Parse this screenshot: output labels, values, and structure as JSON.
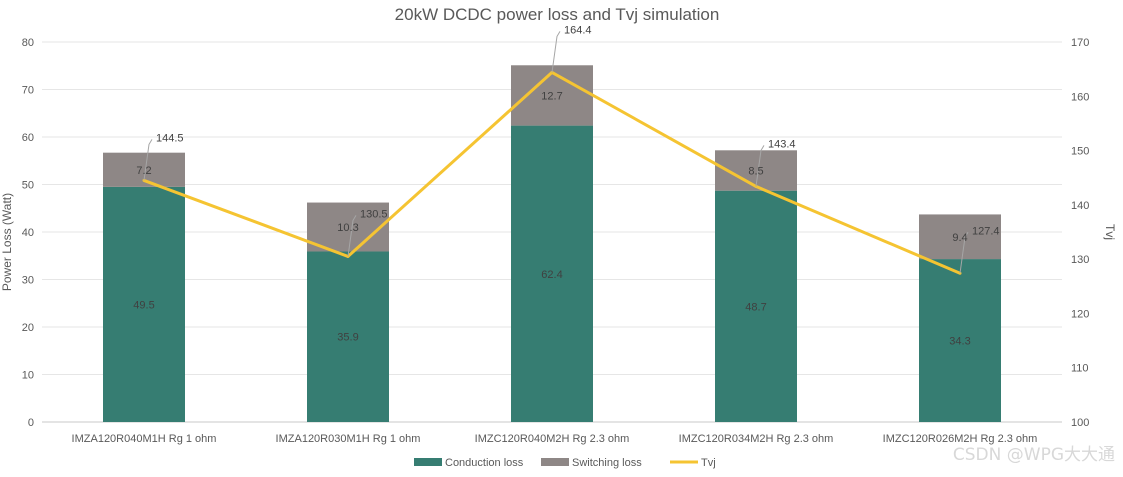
{
  "chart_data": {
    "type": "bar",
    "title": "20kW DCDC power loss and Tvj simulation",
    "categories": [
      "IMZA120R040M1H Rg 1 ohm",
      "IMZA120R030M1H Rg 1 ohm",
      "IMZC120R040M2H Rg 2.3 ohm",
      "IMZC120R034M2H Rg 2.3 ohm",
      "IMZC120R026M2H Rg 2.3 ohm"
    ],
    "series": [
      {
        "name": "Conduction loss",
        "kind": "stacked-bar",
        "axis": "left",
        "color": "#367d72",
        "values": [
          49.5,
          35.9,
          62.4,
          48.7,
          34.3
        ]
      },
      {
        "name": "Switching loss",
        "kind": "stacked-bar",
        "axis": "left",
        "color": "#8e8786",
        "values": [
          7.2,
          10.3,
          12.7,
          8.5,
          9.4
        ]
      },
      {
        "name": "Tvj",
        "kind": "line",
        "axis": "right",
        "color": "#f5c432",
        "values": [
          144.5,
          130.5,
          164.4,
          143.4,
          127.4
        ]
      }
    ],
    "ylabel": "Power Loss (Watt)",
    "ylim": [
      0,
      80
    ],
    "yticks": [
      "0",
      "10",
      "20",
      "30",
      "40",
      "50",
      "60",
      "70",
      "80"
    ],
    "y2label": "Tvj",
    "y2lim": [
      100,
      170
    ],
    "y2ticks": [
      "100",
      "110",
      "120",
      "130",
      "140",
      "150",
      "160",
      "170"
    ],
    "grid": true,
    "legend_position": "bottom"
  },
  "watermark": "CSDN @WPG大大通"
}
